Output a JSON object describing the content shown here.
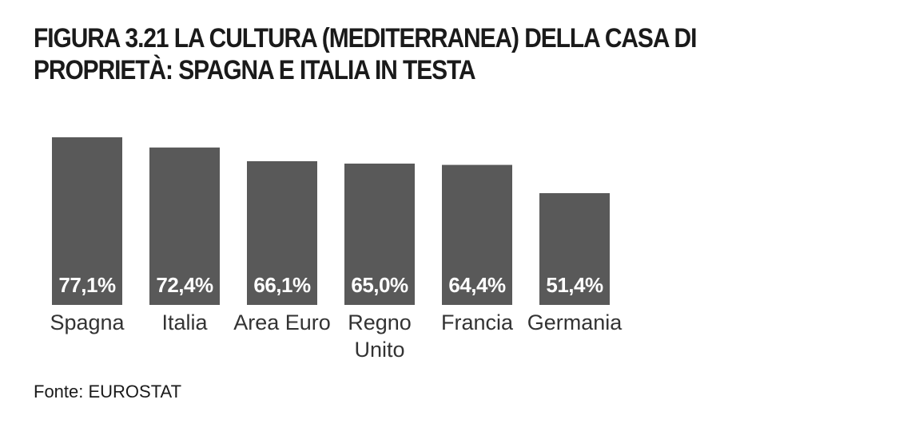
{
  "title": "FIGURA 3.21 LA CULTURA (MEDITERRANEA) DELLA CASA DI PROPRIETÀ: SPAGNA E ITALIA IN TESTA",
  "source": "Fonte: EUROSTAT",
  "colors": {
    "bar": "#595959",
    "value_label": "#ffffff",
    "text": "#1a1a1a"
  },
  "chart_data": {
    "type": "bar",
    "categories": [
      "Spagna",
      "Italia",
      "Area Euro",
      "Regno Unito",
      "Francia",
      "Germania"
    ],
    "values": [
      77.1,
      72.4,
      66.1,
      65.0,
      64.4,
      51.4
    ],
    "value_labels": [
      "77,1%",
      "72,4%",
      "66,1%",
      "65,0%",
      "64,4%",
      "51,4%"
    ],
    "unit": "%",
    "ylim": [
      0,
      100
    ],
    "grid": false,
    "legend": "none"
  }
}
